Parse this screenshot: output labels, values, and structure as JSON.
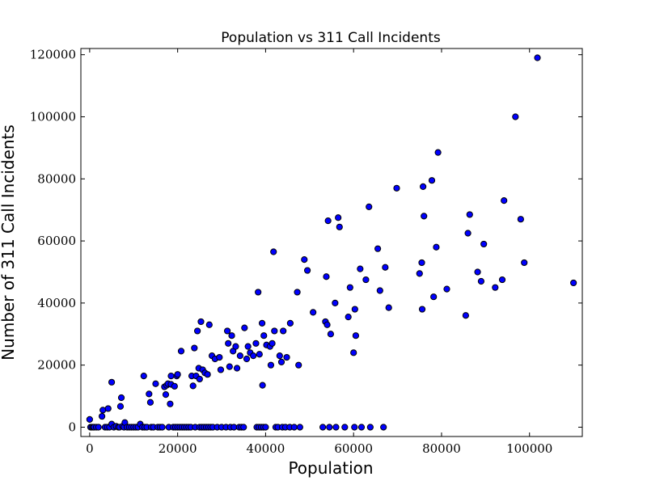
{
  "chart_data": {
    "type": "scatter",
    "title": "Population vs 311 Call Incidents",
    "xlabel": "Population",
    "ylabel": "Number of 311 Call Incidents",
    "xlim": [
      -2000,
      112000
    ],
    "ylim": [
      -3000,
      122000
    ],
    "xticks": [
      0,
      20000,
      40000,
      60000,
      80000,
      100000
    ],
    "yticks": [
      0,
      20000,
      40000,
      60000,
      80000,
      100000,
      120000
    ],
    "xtick_labels": [
      "0",
      "20000",
      "40000",
      "60000",
      "80000",
      "100000"
    ],
    "ytick_labels": [
      "0",
      "20000",
      "40000",
      "60000",
      "80000",
      "100000",
      "120000"
    ],
    "grid": false,
    "legend": "none",
    "marker_color": "#0000ff",
    "marker_edge_color": "#000000",
    "points": [
      [
        0,
        2500
      ],
      [
        200,
        0
      ],
      [
        500,
        0
      ],
      [
        800,
        0
      ],
      [
        1000,
        0
      ],
      [
        1500,
        0
      ],
      [
        2000,
        0
      ],
      [
        2800,
        3500
      ],
      [
        3000,
        5500
      ],
      [
        3500,
        0
      ],
      [
        4000,
        0
      ],
      [
        4200,
        6000
      ],
      [
        4500,
        0
      ],
      [
        5000,
        14500
      ],
      [
        5000,
        1000
      ],
      [
        5500,
        0
      ],
      [
        6000,
        300
      ],
      [
        6500,
        0
      ],
      [
        6800,
        0
      ],
      [
        7000,
        6700
      ],
      [
        7200,
        9500
      ],
      [
        7500,
        300
      ],
      [
        7800,
        0
      ],
      [
        8000,
        1500
      ],
      [
        8500,
        0
      ],
      [
        9000,
        0
      ],
      [
        9500,
        0
      ],
      [
        10000,
        0
      ],
      [
        10500,
        0
      ],
      [
        11000,
        0
      ],
      [
        11500,
        1000
      ],
      [
        12000,
        0
      ],
      [
        12300,
        16500
      ],
      [
        12500,
        0
      ],
      [
        13000,
        0
      ],
      [
        13500,
        10700
      ],
      [
        13800,
        8000
      ],
      [
        14000,
        0
      ],
      [
        14500,
        0
      ],
      [
        15000,
        14000
      ],
      [
        15500,
        0
      ],
      [
        16000,
        0
      ],
      [
        16500,
        0
      ],
      [
        17000,
        13000
      ],
      [
        17300,
        10500
      ],
      [
        17500,
        13500
      ],
      [
        17800,
        14000
      ],
      [
        18000,
        0
      ],
      [
        18300,
        7500
      ],
      [
        18500,
        13800
      ],
      [
        18500,
        16500
      ],
      [
        19000,
        0
      ],
      [
        19300,
        13200
      ],
      [
        19500,
        0
      ],
      [
        19800,
        16500
      ],
      [
        20000,
        0
      ],
      [
        20000,
        17000
      ],
      [
        20500,
        0
      ],
      [
        20800,
        24500
      ],
      [
        21000,
        0
      ],
      [
        21500,
        0
      ],
      [
        22000,
        0
      ],
      [
        22500,
        0
      ],
      [
        23000,
        0
      ],
      [
        23200,
        16500
      ],
      [
        23500,
        13300
      ],
      [
        23800,
        25500
      ],
      [
        24000,
        0
      ],
      [
        24200,
        16500
      ],
      [
        24500,
        31000
      ],
      [
        24800,
        19000
      ],
      [
        25000,
        0
      ],
      [
        25000,
        15500
      ],
      [
        25300,
        34000
      ],
      [
        25500,
        0
      ],
      [
        25700,
        18500
      ],
      [
        26000,
        0
      ],
      [
        26200,
        17500
      ],
      [
        26500,
        0
      ],
      [
        26800,
        17000
      ],
      [
        27000,
        0
      ],
      [
        27200,
        33000
      ],
      [
        27500,
        0
      ],
      [
        27800,
        23000
      ],
      [
        28000,
        0
      ],
      [
        28500,
        22000
      ],
      [
        29000,
        0
      ],
      [
        29500,
        22500
      ],
      [
        29800,
        18500
      ],
      [
        30000,
        0
      ],
      [
        31000,
        0
      ],
      [
        31300,
        31000
      ],
      [
        31500,
        27000
      ],
      [
        31800,
        19500
      ],
      [
        32000,
        0
      ],
      [
        32300,
        29500
      ],
      [
        32600,
        24500
      ],
      [
        32800,
        0
      ],
      [
        33200,
        26000
      ],
      [
        33500,
        19000
      ],
      [
        34000,
        0
      ],
      [
        34200,
        23000
      ],
      [
        34500,
        0
      ],
      [
        35000,
        0
      ],
      [
        35200,
        32000
      ],
      [
        35700,
        22000
      ],
      [
        36000,
        26000
      ],
      [
        36500,
        24000
      ],
      [
        37200,
        23000
      ],
      [
        37800,
        27000
      ],
      [
        38000,
        0
      ],
      [
        38300,
        43500
      ],
      [
        38500,
        0
      ],
      [
        38600,
        23500
      ],
      [
        39000,
        0
      ],
      [
        39200,
        33500
      ],
      [
        39300,
        13500
      ],
      [
        39500,
        0
      ],
      [
        39600,
        29500
      ],
      [
        40000,
        0
      ],
      [
        40200,
        26500
      ],
      [
        41000,
        26000
      ],
      [
        41200,
        20000
      ],
      [
        41500,
        27000
      ],
      [
        41800,
        56500
      ],
      [
        42000,
        31000
      ],
      [
        42300,
        0
      ],
      [
        42800,
        0
      ],
      [
        43200,
        23000
      ],
      [
        43600,
        21000
      ],
      [
        43800,
        0
      ],
      [
        44000,
        31000
      ],
      [
        44500,
        0
      ],
      [
        44800,
        22500
      ],
      [
        45500,
        0
      ],
      [
        45600,
        33500
      ],
      [
        46500,
        0
      ],
      [
        47200,
        43500
      ],
      [
        47500,
        20000
      ],
      [
        47800,
        0
      ],
      [
        48800,
        54000
      ],
      [
        49500,
        50500
      ],
      [
        50800,
        37000
      ],
      [
        53000,
        0
      ],
      [
        53600,
        34000
      ],
      [
        53800,
        48500
      ],
      [
        54000,
        33000
      ],
      [
        54200,
        66500
      ],
      [
        54500,
        0
      ],
      [
        54800,
        30000
      ],
      [
        55800,
        40000
      ],
      [
        56000,
        0
      ],
      [
        56500,
        67500
      ],
      [
        56800,
        64500
      ],
      [
        58000,
        0
      ],
      [
        58800,
        35500
      ],
      [
        59200,
        45000
      ],
      [
        60000,
        24000
      ],
      [
        60200,
        0
      ],
      [
        60300,
        38000
      ],
      [
        60500,
        29500
      ],
      [
        61500,
        51000
      ],
      [
        61800,
        0
      ],
      [
        62800,
        47500
      ],
      [
        63500,
        71000
      ],
      [
        63800,
        0
      ],
      [
        65500,
        57500
      ],
      [
        66000,
        44000
      ],
      [
        66800,
        0
      ],
      [
        67200,
        51500
      ],
      [
        68000,
        38500
      ],
      [
        69800,
        77000
      ],
      [
        75000,
        49500
      ],
      [
        75500,
        53000
      ],
      [
        75600,
        38000
      ],
      [
        75800,
        77500
      ],
      [
        76000,
        68000
      ],
      [
        77800,
        79500
      ],
      [
        78200,
        42000
      ],
      [
        78800,
        58000
      ],
      [
        79200,
        88500
      ],
      [
        81200,
        44500
      ],
      [
        85500,
        36000
      ],
      [
        86000,
        62500
      ],
      [
        86400,
        68500
      ],
      [
        88200,
        50000
      ],
      [
        89000,
        47000
      ],
      [
        89600,
        59000
      ],
      [
        92200,
        45000
      ],
      [
        93800,
        47500
      ],
      [
        94200,
        73000
      ],
      [
        96800,
        100000
      ],
      [
        98000,
        67000
      ],
      [
        98800,
        53000
      ],
      [
        101800,
        119000
      ],
      [
        110000,
        46500
      ]
    ]
  }
}
